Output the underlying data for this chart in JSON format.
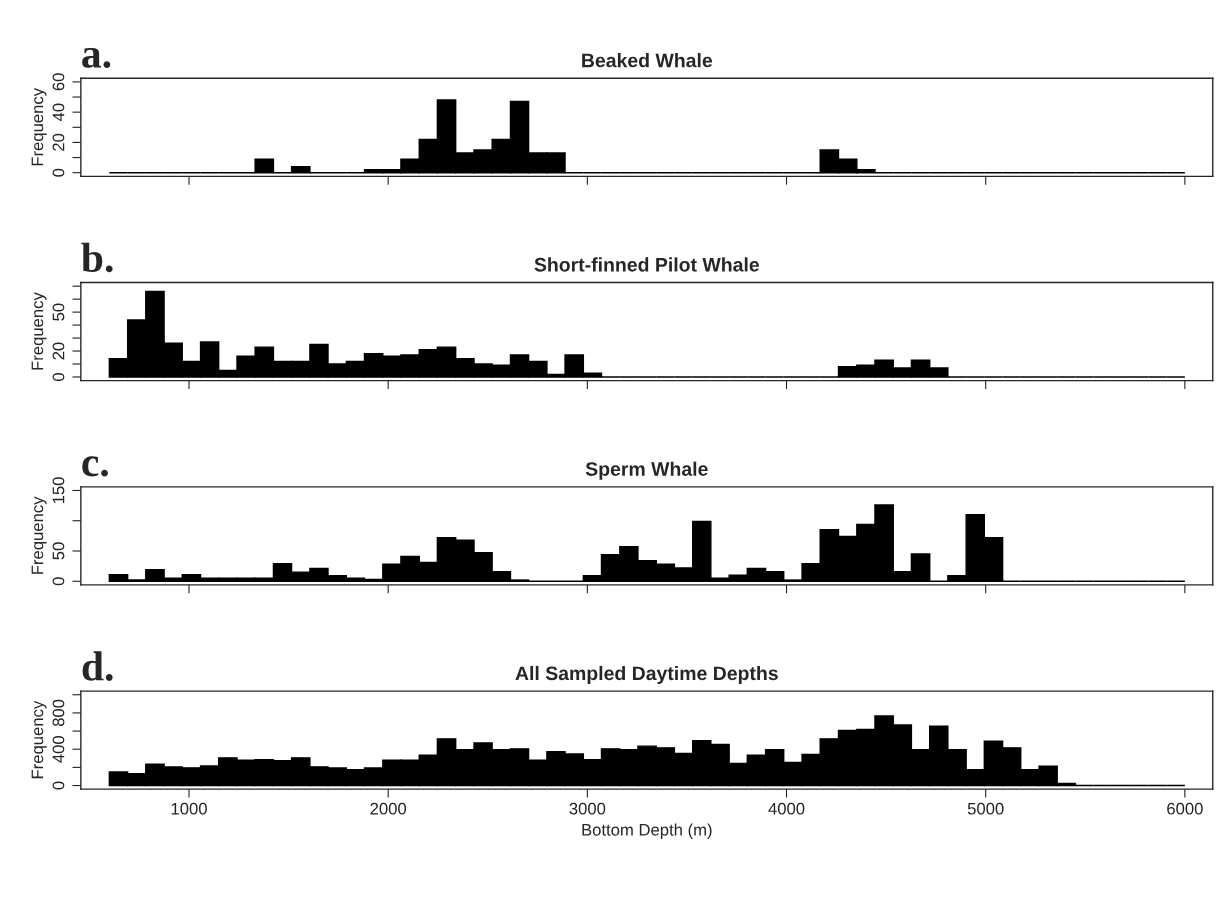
{
  "chart_data": [
    {
      "type": "histogram",
      "title": "Beaked Whale",
      "ylabel": "Frequency",
      "annotations": [
        "a."
      ],
      "color": "#000000",
      "bins": [
        600,
        692,
        783,
        875,
        966,
        1058,
        1149,
        1241,
        1332,
        1424,
        1515,
        1607,
        1698,
        1790,
        1881,
        1973,
        2064,
        2156,
        2247,
        2339,
        2431,
        2522,
        2614,
        2705,
        2797,
        2888,
        2980,
        3071,
        3163,
        3254,
        3346,
        3437,
        3529,
        3620,
        3712,
        3803,
        3895,
        3986,
        4078,
        4169,
        4261,
        4353,
        4444,
        4536,
        4627,
        4719,
        4810,
        4902,
        4993,
        5085,
        5176,
        5268,
        5359,
        5451,
        5542,
        5634,
        5725,
        5817,
        5908,
        6000
      ],
      "values": [
        0,
        0,
        0,
        0,
        0,
        0,
        0,
        0,
        9,
        0,
        4,
        0,
        0,
        0,
        2,
        2,
        9,
        22,
        48,
        13,
        15,
        22,
        47,
        13,
        13,
        0,
        0,
        0,
        0,
        0,
        0,
        0,
        0,
        0,
        0,
        0,
        0,
        0,
        0,
        15,
        9,
        2,
        0,
        0,
        0,
        0,
        0,
        0,
        0,
        0,
        0,
        0,
        0,
        0,
        0,
        0,
        0,
        0,
        0
      ],
      "xlim": [
        457,
        6140
      ],
      "xticks": [
        1000,
        2000,
        3000,
        4000,
        5000,
        6000
      ],
      "ylim": [
        -2.4,
        62.4
      ],
      "yticks": [
        0,
        {
          "value": 10,
          "label": null
        },
        20,
        {
          "value": 30,
          "label": null
        },
        40,
        {
          "value": 50,
          "label": null
        },
        60
      ],
      "tick_labels": "y"
    },
    {
      "type": "histogram",
      "title": "Short-finned Pilot Whale",
      "ylabel": "Frequency",
      "annotations": [
        "b."
      ],
      "color": "#000000",
      "bins": [
        600,
        692,
        783,
        875,
        966,
        1058,
        1149,
        1241,
        1332,
        1424,
        1515,
        1607,
        1698,
        1790,
        1881,
        1973,
        2064,
        2156,
        2247,
        2339,
        2431,
        2522,
        2614,
        2705,
        2797,
        2888,
        2980,
        3071,
        3163,
        3254,
        3346,
        3437,
        3529,
        3620,
        3712,
        3803,
        3895,
        3986,
        4078,
        4169,
        4261,
        4353,
        4444,
        4536,
        4627,
        4719,
        4810,
        4902,
        4993,
        5085,
        5176,
        5268,
        5359,
        5451,
        5542,
        5634,
        5725,
        5817,
        5908,
        6000
      ],
      "values": [
        14,
        44,
        66,
        26,
        12,
        27,
        5,
        16,
        23,
        12,
        12,
        25,
        10,
        12,
        18,
        16,
        17,
        21,
        23,
        14,
        10,
        9,
        17,
        12,
        2,
        17,
        3,
        0,
        0,
        0,
        0,
        0,
        0,
        0,
        0,
        0,
        0,
        0,
        0,
        0,
        8,
        9,
        13,
        7,
        13,
        7,
        0,
        0,
        0,
        0,
        0,
        0,
        0,
        0,
        0,
        0,
        0,
        0,
        0
      ],
      "xlim": [
        457,
        6140
      ],
      "xticks": [
        1000,
        2000,
        3000,
        4000,
        5000,
        6000
      ],
      "ylim": [
        -2.8,
        72.8
      ],
      "yticks": [
        0,
        {
          "value": 10,
          "label": null
        },
        20,
        {
          "value": 30,
          "label": null
        },
        {
          "value": 40,
          "label": null
        },
        50,
        {
          "value": 60,
          "label": null
        },
        {
          "value": 70,
          "label": null
        }
      ],
      "tick_labels": "y"
    },
    {
      "type": "histogram",
      "title": "Sperm Whale",
      "ylabel": "Frequency",
      "annotations": [
        "c."
      ],
      "color": "#000000",
      "bins": [
        600,
        692,
        783,
        875,
        966,
        1058,
        1149,
        1241,
        1332,
        1424,
        1515,
        1607,
        1698,
        1790,
        1881,
        1973,
        2064,
        2156,
        2247,
        2339,
        2431,
        2522,
        2614,
        2705,
        2797,
        2888,
        2980,
        3071,
        3163,
        3254,
        3346,
        3437,
        3529,
        3620,
        3712,
        3803,
        3895,
        3986,
        4078,
        4169,
        4261,
        4353,
        4444,
        4536,
        4627,
        4719,
        4810,
        4902,
        4993,
        5085,
        5176,
        5268,
        5359,
        5451,
        5542,
        5634,
        5725,
        5817,
        5908,
        6000
      ],
      "values": [
        11,
        2,
        19,
        5,
        11,
        5,
        5,
        5,
        5,
        29,
        15,
        21,
        9,
        5,
        3,
        28,
        41,
        31,
        72,
        68,
        47,
        16,
        2,
        0,
        0,
        0,
        9,
        44,
        57,
        34,
        28,
        22,
        99,
        5,
        10,
        21,
        16,
        2,
        29,
        85,
        74,
        94,
        126,
        16,
        45,
        0,
        9,
        110,
        72,
        0,
        0,
        0,
        0,
        0,
        0,
        0,
        0,
        0,
        0
      ],
      "xlim": [
        457,
        6140
      ],
      "xticks": [
        1000,
        2000,
        3000,
        4000,
        5000,
        6000
      ],
      "ylim": [
        -6,
        156
      ],
      "yticks": [
        0,
        50,
        {
          "value": 100,
          "label": null
        },
        150
      ],
      "tick_labels": "y"
    },
    {
      "type": "histogram",
      "title": "All Sampled Daytime Depths",
      "xlabel": "Bottom Depth (m)",
      "ylabel": "Frequency",
      "annotations": [
        "d."
      ],
      "color": "#000000",
      "bins": [
        600,
        692,
        783,
        875,
        966,
        1058,
        1149,
        1241,
        1332,
        1424,
        1515,
        1607,
        1698,
        1790,
        1881,
        1973,
        2064,
        2156,
        2247,
        2339,
        2431,
        2522,
        2614,
        2705,
        2797,
        2888,
        2980,
        3071,
        3163,
        3254,
        3346,
        3437,
        3529,
        3620,
        3712,
        3803,
        3895,
        3986,
        4078,
        4169,
        4261,
        4353,
        4444,
        4536,
        4627,
        4719,
        4810,
        4902,
        4993,
        5085,
        5176,
        5268,
        5359,
        5451,
        5542,
        5634,
        5725,
        5817,
        5908,
        6000
      ],
      "values": [
        150,
        130,
        235,
        205,
        195,
        215,
        305,
        278,
        285,
        274,
        305,
        206,
        194,
        175,
        194,
        278,
        278,
        335,
        514,
        396,
        469,
        396,
        404,
        278,
        373,
        347,
        286,
        404,
        396,
        434,
        415,
        354,
        495,
        453,
        244,
        335,
        396,
        255,
        343,
        514,
        606,
        617,
        766,
        667,
        396,
        655,
        396,
        175,
        488,
        415,
        175,
        213,
        23,
        0,
        0,
        0,
        0,
        0,
        0
      ],
      "xlim": [
        457,
        6140
      ],
      "xticks": [
        1000,
        2000,
        3000,
        4000,
        5000,
        6000
      ],
      "ylim": [
        -40,
        1040
      ],
      "yticks": [
        0,
        {
          "value": 200,
          "label": null
        },
        400,
        {
          "value": 600,
          "label": null
        },
        800,
        {
          "value": 1000,
          "label": null
        }
      ]
    }
  ]
}
